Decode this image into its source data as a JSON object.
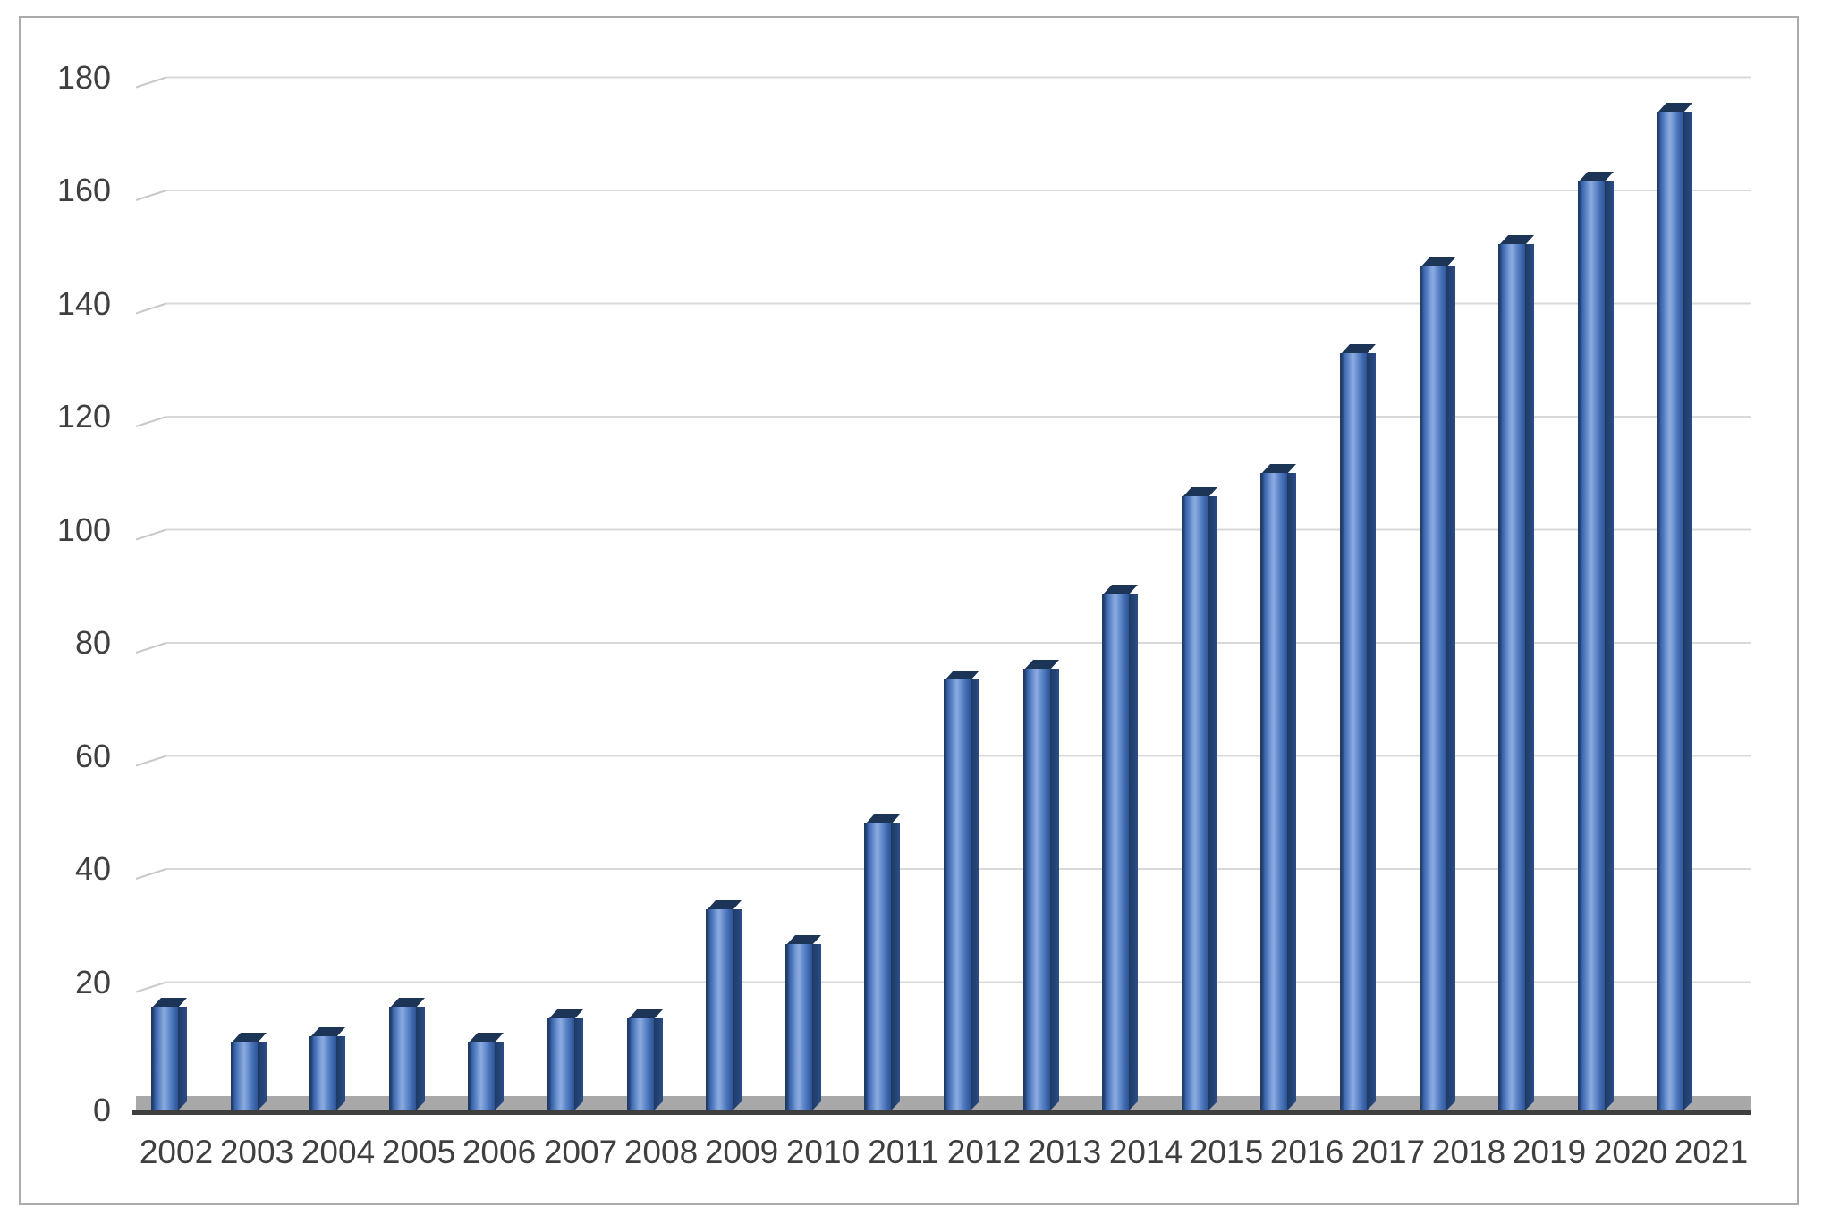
{
  "figure": {
    "border_color": "#ababab",
    "background_color": "#ffffff"
  },
  "chart_data": {
    "type": "bar",
    "style": "3d-column",
    "title": "",
    "xlabel": "",
    "ylabel": "",
    "categories": [
      "2002",
      "2003",
      "2004",
      "2005",
      "2006",
      "2007",
      "2008",
      "2009",
      "2010",
      "2011",
      "2012",
      "2013",
      "2014",
      "2015",
      "2016",
      "2017",
      "2018",
      "2019",
      "2020",
      "2021"
    ],
    "values": [
      18,
      12,
      13,
      18,
      12,
      16,
      16,
      35,
      29,
      50,
      75,
      77,
      90,
      107,
      111,
      132,
      147,
      151,
      162,
      174
    ],
    "ylim": [
      0,
      180
    ],
    "yticks": [
      0,
      20,
      40,
      60,
      80,
      100,
      120,
      140,
      160,
      180
    ],
    "grid": "horizontal",
    "legend": "none",
    "colors": {
      "bar_front": "#4f7abf",
      "bar_front_highlight": "#8cabdf",
      "bar_side_dark": "#1d3a64",
      "bar_cap": "#1c3557",
      "gridline": "#d9d9d9",
      "grid_bevel": "#c9c9c9",
      "floor": "#a8a8a8",
      "floor_edge": "#3e3e3e",
      "axis_label": "#3f3f3f"
    }
  }
}
